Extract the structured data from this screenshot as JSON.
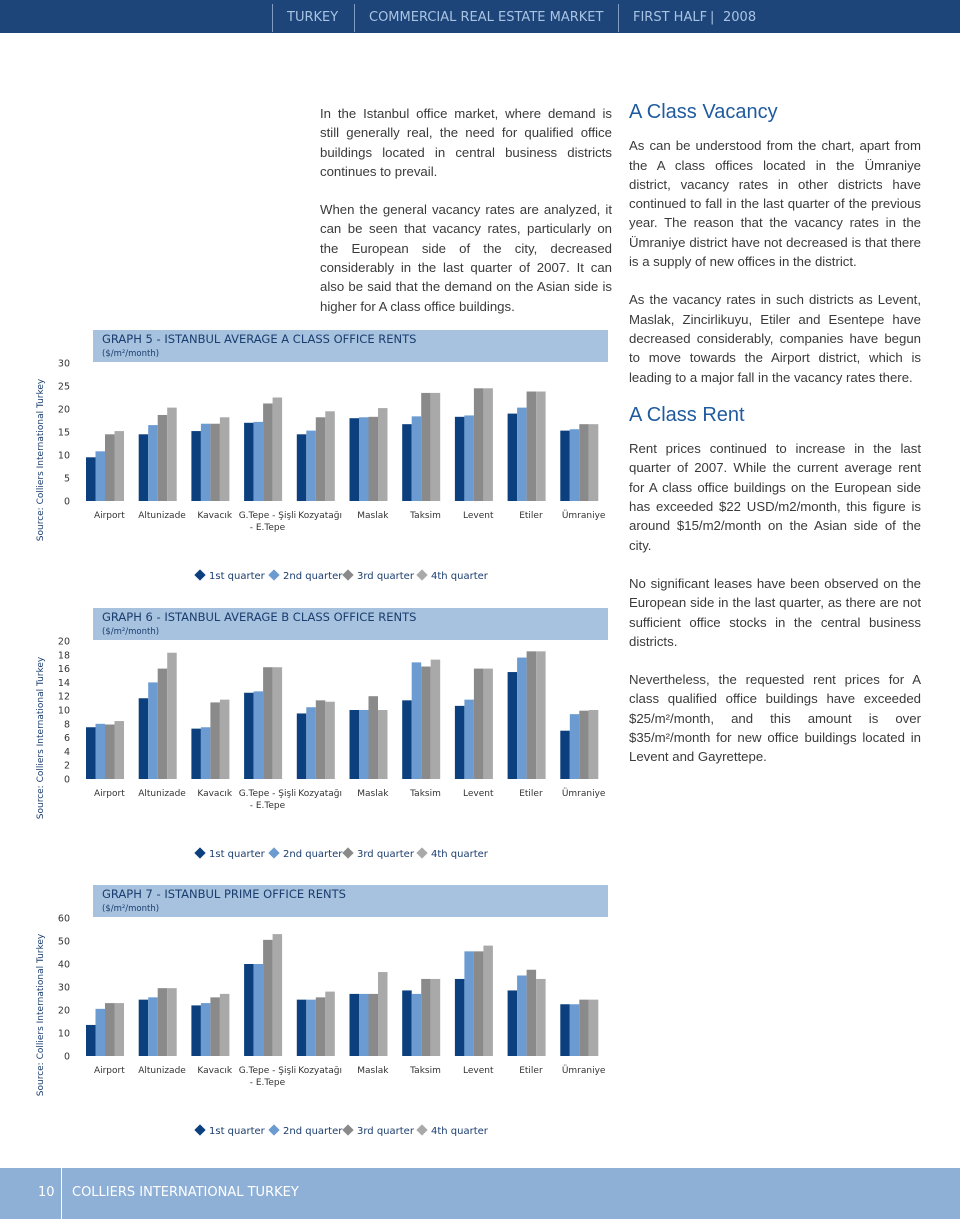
{
  "header": {
    "country": "TURKEY",
    "report": "COMMERCIAL REAL ESTATE MARKET",
    "period": "FIRST HALF",
    "year": "2008"
  },
  "body": {
    "middle": [
      "In the Istanbul office market, where demand is still generally real, the need for qualified office buildings located in central business districts continues to prevail.",
      "When the general vacancy rates are analyzed, it can be seen that vacancy rates, particularly on the European side of the city, decreased considerably in the last quarter of 2007. It can also be said that the demand on the Asian side is higher for A class office buildings."
    ],
    "vacancy_heading": "A Class Vacancy",
    "vacancy_paragraphs": [
      "As can be understood from the chart, apart from the A class offices located in the Ümraniye district, vacancy rates in other districts have continued to fall in the last quarter of the previous year. The reason that the vacancy rates in the Ümraniye district have not decreased is that there is a supply of new offices in the district.",
      "As the vacancy rates in such districts as Levent, Maslak, Zincirlikuyu, Etiler and Esentepe have decreased considerably, companies have begun to move towards the Airport district, which is leading to a major fall in the vacancy rates there."
    ],
    "rent_heading": "A Class Rent",
    "rent_paragraphs": [
      "Rent prices continued to increase in the last quarter of 2007. While the current average rent for A class office buildings on the European side has exceeded $22 USD/m2/month, this figure is around $15/m2/month on the Asian side of the city.",
      "No significant leases have been observed on the European side in the last quarter, as there are not sufficient office stocks in the central business districts.",
      "Nevertheless, the requested rent prices for A class qualified office buildings have exceeded $25/m²/month, and this amount is over $35/m²/month for new office buildings located in Levent and Gayrettepe."
    ]
  },
  "chart_data": [
    {
      "type": "bar",
      "title": "GRAPH 5 - ISTANBUL AVERAGE A CLASS OFFICE RENTS",
      "subtitle": "($/m²/month)",
      "source": "Source: Colliers International Turkey",
      "categories": [
        "Airport",
        "Altunizade",
        "Kavacık",
        "G.Tepe - Şişli - E.Tepe",
        "Kozyatağı",
        "Maslak",
        "Taksim",
        "Levent",
        "Etiler",
        "Ümraniye"
      ],
      "series": [
        {
          "name": "1st quarter",
          "color": "#0b3f7d",
          "values": [
            9.5,
            14.5,
            15.2,
            17,
            14.5,
            18,
            16.7,
            18.3,
            19,
            15.3
          ]
        },
        {
          "name": "2nd quarter",
          "color": "#6b9bd0",
          "values": [
            10.8,
            16.5,
            16.8,
            17.2,
            15.3,
            18.2,
            18.4,
            18.6,
            20.3,
            15.6
          ]
        },
        {
          "name": "3rd quarter",
          "color": "#8a8a8a",
          "values": [
            14.5,
            18.7,
            16.8,
            21.2,
            18.2,
            18.3,
            23.5,
            24.5,
            23.8,
            16.7
          ]
        },
        {
          "name": "4th quarter",
          "color": "#a9a9a9",
          "values": [
            15.2,
            20.3,
            18.2,
            22.5,
            19.5,
            20.2,
            23.5,
            24.5,
            23.8,
            16.7
          ]
        }
      ],
      "ylim": [
        0,
        30
      ],
      "yticks": [
        0,
        5,
        10,
        15,
        20,
        25,
        30
      ]
    },
    {
      "type": "bar",
      "title": "GRAPH 6 - ISTANBUL AVERAGE B CLASS OFFICE RENTS",
      "subtitle": "($/m²/month)",
      "source": "Source: Colliers International Turkey",
      "categories": [
        "Airport",
        "Altunizade",
        "Kavacık",
        "G.Tepe - Şişli - E.Tepe",
        "Kozyatağı",
        "Maslak",
        "Taksim",
        "Levent",
        "Etiler",
        "Ümraniye"
      ],
      "series": [
        {
          "name": "1st quarter",
          "color": "#0b3f7d",
          "values": [
            7.5,
            11.7,
            7.3,
            12.5,
            9.5,
            10,
            11.4,
            10.6,
            15.5,
            7
          ]
        },
        {
          "name": "2nd quarter",
          "color": "#6b9bd0",
          "values": [
            8,
            14,
            7.5,
            12.7,
            10.4,
            10,
            16.9,
            11.5,
            17.6,
            9.4
          ]
        },
        {
          "name": "3rd quarter",
          "color": "#8a8a8a",
          "values": [
            7.9,
            16,
            11.1,
            16.2,
            11.4,
            12,
            16.3,
            16,
            18.5,
            9.9
          ]
        },
        {
          "name": "4th quarter",
          "color": "#a9a9a9",
          "values": [
            8.4,
            18.3,
            11.5,
            16.2,
            11.2,
            10,
            17.3,
            16,
            18.5,
            10
          ]
        }
      ],
      "ylim": [
        0,
        20
      ],
      "yticks": [
        0,
        2,
        4,
        6,
        8,
        10,
        12,
        14,
        16,
        18,
        20
      ]
    },
    {
      "type": "bar",
      "title": "GRAPH 7 - ISTANBUL PRIME OFFICE RENTS",
      "subtitle": "($/m²/month)",
      "source": "Source: Colliers International Turkey",
      "categories": [
        "Airport",
        "Altunizade",
        "Kavacık",
        "G.Tepe - Şişli - E.Tepe",
        "Kozyatağı",
        "Maslak",
        "Taksim",
        "Levent",
        "Etiler",
        "Ümraniye"
      ],
      "series": [
        {
          "name": "1st quarter",
          "color": "#0b3f7d",
          "values": [
            13.5,
            24.5,
            22,
            40,
            24.5,
            27,
            28.5,
            33.5,
            28.5,
            22.5
          ]
        },
        {
          "name": "2nd quarter",
          "color": "#6b9bd0",
          "values": [
            20.5,
            25.5,
            23,
            40,
            24.5,
            27,
            27,
            45.5,
            35,
            22.5
          ]
        },
        {
          "name": "3rd quarter",
          "color": "#8a8a8a",
          "values": [
            23,
            29.5,
            25.5,
            50.5,
            25.5,
            27,
            33.5,
            45.5,
            37.5,
            24.5
          ]
        },
        {
          "name": "4th quarter",
          "color": "#a9a9a9",
          "values": [
            23,
            29.5,
            27,
            53,
            28,
            36.5,
            33.5,
            48,
            33.5,
            24.5
          ]
        }
      ],
      "ylim": [
        0,
        60
      ],
      "yticks": [
        0,
        10,
        20,
        30,
        40,
        50,
        60
      ]
    }
  ],
  "footer": {
    "page": "10",
    "publisher": "COLLIERS INTERNATIONAL TURKEY"
  }
}
